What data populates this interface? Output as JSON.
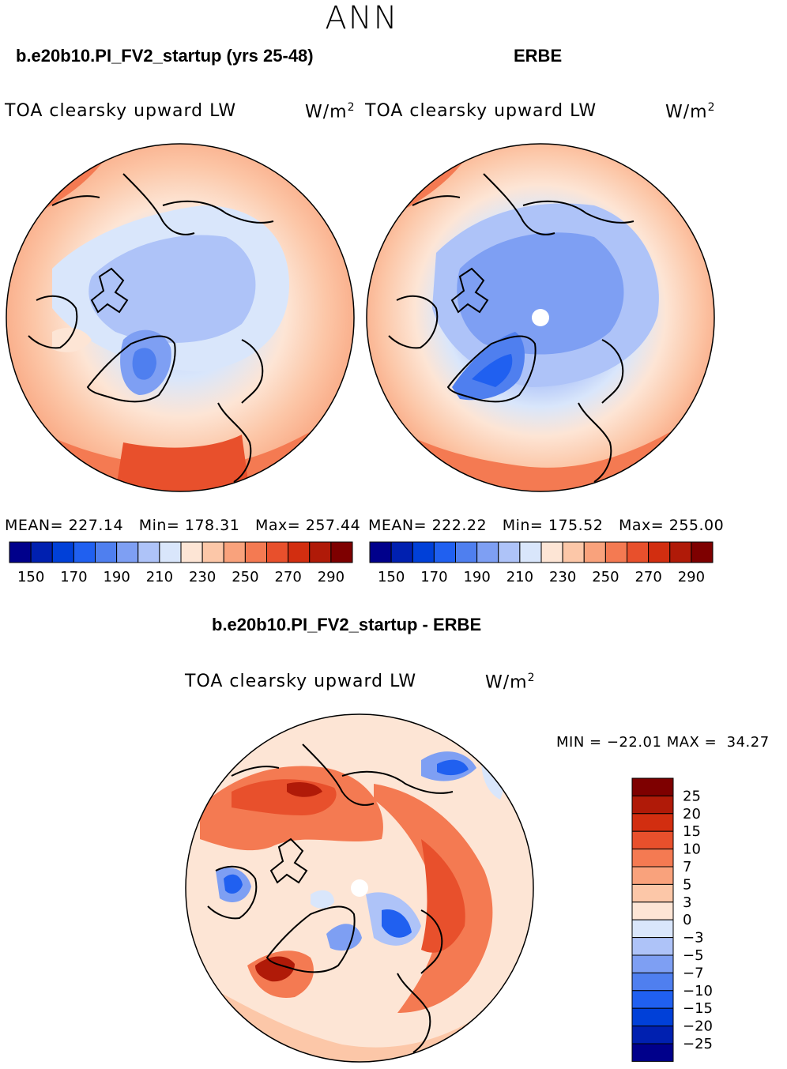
{
  "header": {
    "season": "ANN"
  },
  "top_left": {
    "case_title": "b.e20b10.PI_FV2_startup (yrs 25-48)",
    "variable": "TOA clearsky upward LW",
    "units_base": "W/m",
    "units_exp": "2",
    "stats": {
      "mean_label": "MEAN=",
      "mean": "227.14",
      "min_label": "Min=",
      "min": "178.31",
      "max_label": "Max=",
      "max": "257.44"
    }
  },
  "top_right": {
    "case_title": "ERBE",
    "variable": "TOA clearsky upward LW",
    "units_base": "W/m",
    "units_exp": "2",
    "stats": {
      "mean_label": "MEAN=",
      "mean": "222.22",
      "min_label": "Min=",
      "min": "175.52",
      "max_label": "Max=",
      "max": "255.00"
    }
  },
  "top_colorbar": {
    "colors": [
      "#00008b",
      "#0020b0",
      "#0040d8",
      "#2060f0",
      "#4f7fef",
      "#7e9ff3",
      "#aec3f8",
      "#d9e6fb",
      "#fde5d5",
      "#fcc7a8",
      "#f9a27c",
      "#f47a52",
      "#e8502c",
      "#d22e10",
      "#b01a08",
      "#7e0000"
    ],
    "tick_labels": [
      "150",
      "170",
      "190",
      "210",
      "230",
      "250",
      "270",
      "290"
    ]
  },
  "bottom": {
    "case_title": "b.e20b10.PI_FV2_startup - ERBE",
    "variable": "TOA clearsky upward LW",
    "units_base": "W/m",
    "units_exp": "2",
    "stats": {
      "min_label": "MIN =",
      "min": "−22.01",
      "max_label": "MAX =",
      "max": "34.27"
    }
  },
  "bottom_colorbar": {
    "colors": [
      "#7e0000",
      "#b01a08",
      "#d22e10",
      "#e8502c",
      "#f47a52",
      "#f9a27c",
      "#fcc7a8",
      "#fde5d5",
      "#d9e6fb",
      "#aec3f8",
      "#7e9ff3",
      "#4f7fef",
      "#2060f0",
      "#0040d8",
      "#0020b0",
      "#00008b"
    ],
    "tick_labels": [
      "25",
      "20",
      "15",
      "10",
      "7",
      "5",
      "3",
      "0",
      "−3",
      "−5",
      "−7",
      "−10",
      "−15",
      "−20",
      "−25"
    ]
  }
}
